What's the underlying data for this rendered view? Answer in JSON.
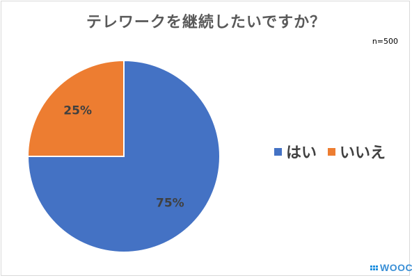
{
  "chart_data": {
    "type": "pie",
    "title": "テレワークを継続したいですか？",
    "note": "n=500",
    "categories": [
      "はい",
      "いいえ"
    ],
    "values": [
      75,
      25
    ],
    "data_labels": [
      "75%",
      "25%"
    ],
    "colors": [
      "#4472c4",
      "#ed7d31"
    ],
    "legend_position": "right"
  },
  "logo": {
    "text": "WOOC",
    "color": "#3a8fd6"
  }
}
